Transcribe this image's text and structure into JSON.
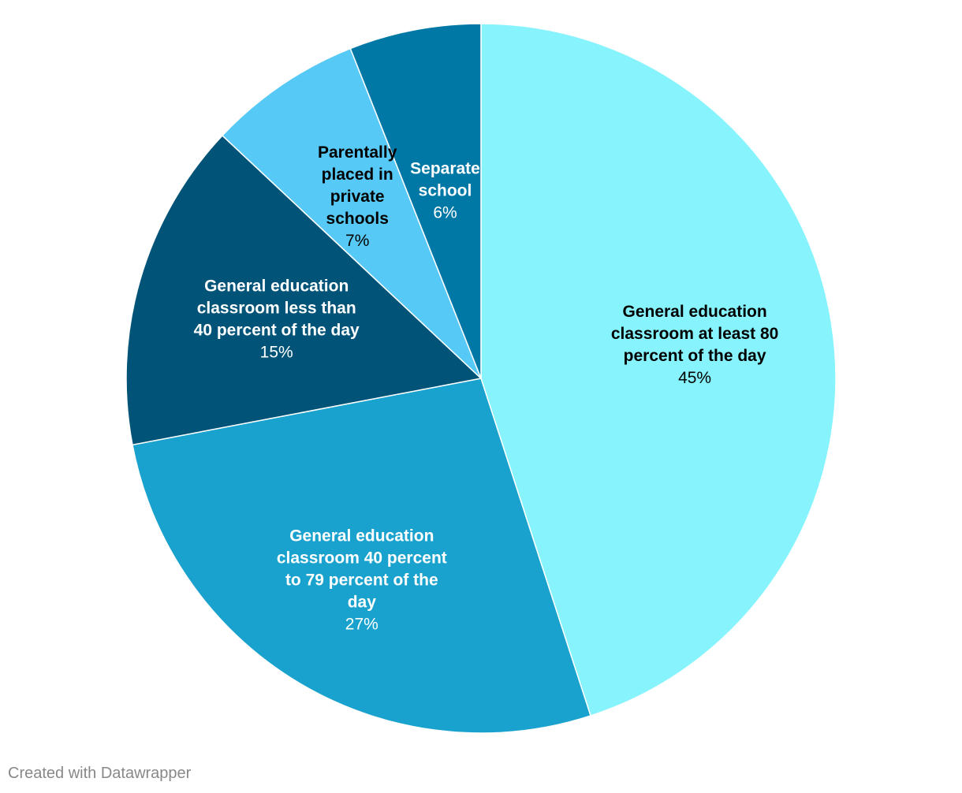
{
  "chart_data": {
    "type": "pie",
    "slices": [
      {
        "label": "General education classroom at least 80 percent of the day",
        "value": 45,
        "value_label": "45%",
        "color": "#87f4fd",
        "text_color": "#000000"
      },
      {
        "label": "General education classroom 40 percent to 79 percent of the day",
        "value": 27,
        "value_label": "27%",
        "color": "#1aa2ce",
        "text_color": "#ffffff"
      },
      {
        "label": "General education classroom less than 40 percent of the day",
        "value": 15,
        "value_label": "15%",
        "color": "#015478",
        "text_color": "#ffffff"
      },
      {
        "label": "Parentally placed in private schools",
        "value": 7,
        "value_label": "7%",
        "color": "#56c9f6",
        "text_color": "#000000"
      },
      {
        "label": "Separate school",
        "value": 6,
        "value_label": "6%",
        "color": "#0078a5",
        "text_color": "#ffffff"
      }
    ],
    "start_angle_deg": 0,
    "direction": "clockwise"
  },
  "footer": {
    "credit": "Created with Datawrapper"
  }
}
